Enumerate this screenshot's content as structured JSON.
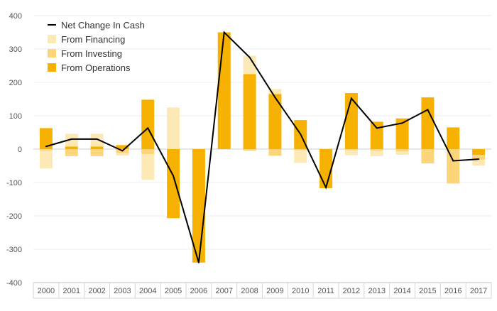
{
  "chart_data": {
    "type": "bar",
    "title": "",
    "xlabel": "",
    "ylabel": "",
    "ylim": [
      -400,
      400
    ],
    "yticks": [
      -400,
      -300,
      -200,
      -100,
      0,
      100,
      200,
      300,
      400
    ],
    "grid": true,
    "legend_position": "top-left",
    "categories": [
      "2000",
      "2001",
      "2002",
      "2003",
      "2004",
      "2005",
      "2006",
      "2007",
      "2008",
      "2009",
      "2010",
      "2011",
      "2012",
      "2013",
      "2014",
      "2015",
      "2016",
      "2017"
    ],
    "series": [
      {
        "name": "Net Change In Cash",
        "kind": "line",
        "color": "#000000",
        "values": [
          8,
          30,
          30,
          -5,
          63,
          -80,
          -340,
          350,
          275,
          155,
          45,
          -115,
          152,
          63,
          78,
          118,
          -35,
          -30
        ]
      },
      {
        "name": "From Financing",
        "kind": "bar",
        "color": "#fde9b6",
        "values": [
          -53,
          38,
          38,
          -7,
          -77,
          125,
          0,
          0,
          55,
          15,
          -38,
          0,
          -15,
          -16,
          -10,
          0,
          0,
          -17
        ]
      },
      {
        "name": "From Investing",
        "kind": "bar",
        "color": "#fcd47a",
        "values": [
          -5,
          -21,
          -21,
          -12,
          -15,
          0,
          0,
          0,
          -5,
          -20,
          -3,
          0,
          -3,
          -5,
          -7,
          -43,
          -103,
          -15
        ]
      },
      {
        "name": "From Operations",
        "kind": "bar",
        "color": "#f7b100",
        "values": [
          63,
          8,
          8,
          12,
          148,
          -207,
          -340,
          350,
          225,
          165,
          87,
          -117,
          168,
          82,
          92,
          155,
          65,
          -17
        ]
      }
    ]
  }
}
